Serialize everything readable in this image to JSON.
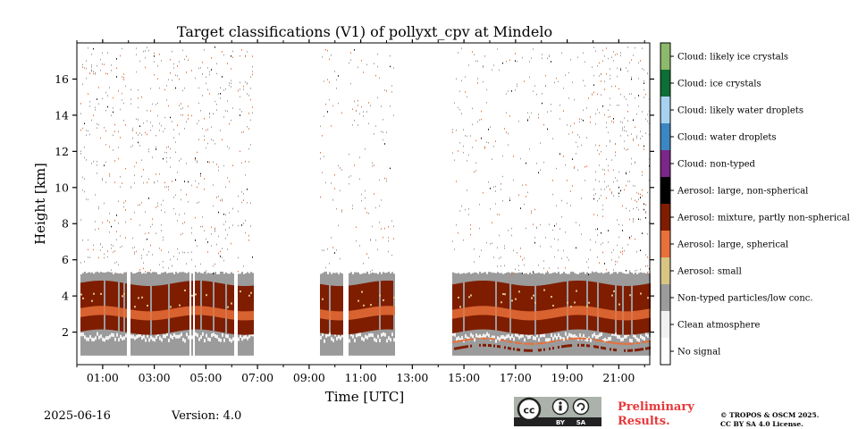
{
  "chart_data": {
    "type": "heatmap",
    "title": "Target classifications (V1) of pollyxt_cpv at Mindelo",
    "xlabel": "Time [UTC]",
    "ylabel": "Height [km]",
    "xlim_hours": [
      0.0,
      22.2
    ],
    "ylim_km": [
      0.2,
      18.0
    ],
    "x_ticks": [
      "01:00",
      "03:00",
      "05:00",
      "07:00",
      "09:00",
      "11:00",
      "13:00",
      "15:00",
      "17:00",
      "19:00",
      "21:00"
    ],
    "x_tick_hours": [
      1,
      3,
      5,
      7,
      9,
      11,
      13,
      15,
      17,
      19,
      21
    ],
    "y_ticks": [
      "2",
      "4",
      "6",
      "8",
      "10",
      "12",
      "14",
      "16"
    ],
    "y_tick_values": [
      2,
      4,
      6,
      8,
      10,
      12,
      14,
      16
    ],
    "legend": [
      {
        "label": "Cloud: likely ice crystals",
        "color": "#8cba6a"
      },
      {
        "label": "Cloud: ice crystals",
        "color": "#0e6e35"
      },
      {
        "label": "Cloud: likely water droplets",
        "color": "#a6d2f0"
      },
      {
        "label": "Cloud: water droplets",
        "color": "#3b87c4"
      },
      {
        "label": "Cloud: non-typed",
        "color": "#7b2688"
      },
      {
        "label": "Aerosol: large, non-spherical",
        "color": "#000000"
      },
      {
        "label": "Aerosol: mixture, partly non-spherical",
        "color": "#7f1d00"
      },
      {
        "label": "Aerosol: large, spherical",
        "color": "#e8703a"
      },
      {
        "label": "Aerosol: small",
        "color": "#d8c583"
      },
      {
        "label": "Non-typed particles/low conc.",
        "color": "#9b9b9b"
      },
      {
        "label": "Clean atmosphere",
        "color": "#f1f1f1"
      },
      {
        "label": "No signal",
        "color": "#ffffff"
      }
    ],
    "data_segments_hours": [
      [
        0.1,
        6.8
      ],
      [
        9.4,
        10.3
      ],
      [
        10.5,
        12.3
      ],
      [
        14.5,
        22.2
      ]
    ],
    "layers": {
      "mixture_partly_nonspherical_km": [
        2.0,
        5.0
      ],
      "large_spherical_km": [
        2.8,
        3.3
      ],
      "non_typed_low_conc_km": [
        0.7,
        5.2
      ]
    }
  },
  "footer": {
    "date": "2025-06-16",
    "version": "Version: 4.0",
    "preliminary": "Preliminary Results.",
    "copyright_line1": "© TROPOS & OSCM 2025.",
    "copyright_line2": "CC BY SA 4.0 License.",
    "cc_by": "BY",
    "cc_sa": "SA"
  }
}
